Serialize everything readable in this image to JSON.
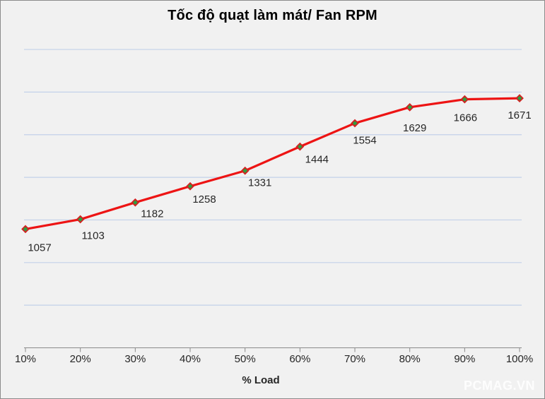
{
  "chart_data": {
    "type": "line",
    "title": "Tốc độ quạt làm mát/ Fan RPM",
    "xlabel": "% Load",
    "ylabel": "",
    "categories": [
      "10%",
      "20%",
      "30%",
      "40%",
      "50%",
      "60%",
      "70%",
      "80%",
      "90%",
      "100%"
    ],
    "series": [
      {
        "name": "Fan RPM",
        "values": [
          1057,
          1103,
          1182,
          1258,
          1331,
          1444,
          1554,
          1629,
          1666,
          1671
        ]
      }
    ],
    "data_labels_visible": true,
    "ylim": [
      500,
      1900
    ],
    "y_tick_interval": 200,
    "y_axis_labels_visible": false,
    "grid": true,
    "legend_position": "none",
    "styles": {
      "line_color": "#ed1414",
      "marker_shape": "diamond",
      "marker_fill": "#2f9e41",
      "marker_outline": "#d42020",
      "gridline_color": "#c3d1e9",
      "axis_color": "#8a8a8a",
      "background": "#f1f1f1",
      "frame_border": "#8c8c8c",
      "label_color": "#262626"
    }
  },
  "watermark": {
    "text": "PCMAG.VN",
    "color": "#ffffff"
  }
}
